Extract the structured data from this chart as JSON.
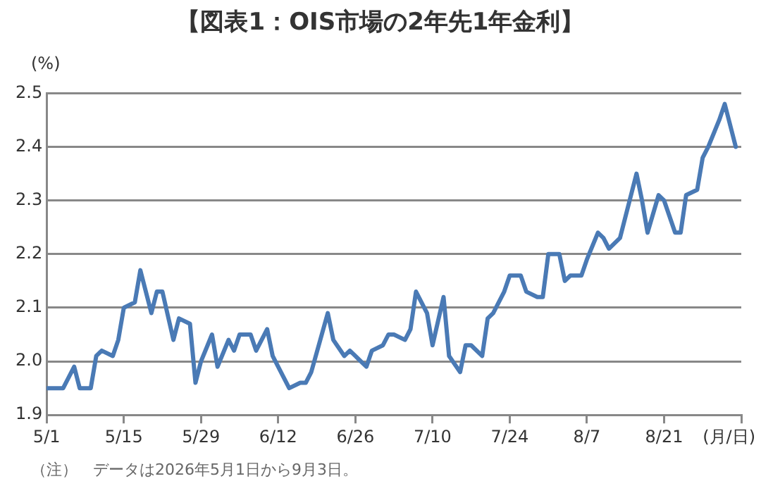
{
  "chart_data": {
    "type": "line",
    "title": "【図表1：OIS市場の2年先1年金利】",
    "ylabel": "(%)",
    "xlabel": "(月/日)",
    "annotations": [
      "（注）　データは2026年5月1日から9月3日。"
    ],
    "x": [
      "2026-05-01",
      "2026-05-04",
      "2026-05-06",
      "2026-05-07",
      "2026-05-09",
      "2026-05-10",
      "2026-05-11",
      "2026-05-13",
      "2026-05-14",
      "2026-05-15",
      "2026-05-17",
      "2026-05-18",
      "2026-05-20",
      "2026-05-21",
      "2026-05-22",
      "2026-05-24",
      "2026-05-25",
      "2026-05-27",
      "2026-05-28",
      "2026-05-29",
      "2026-05-31",
      "2026-06-01",
      "2026-06-03",
      "2026-06-04",
      "2026-06-05",
      "2026-06-07",
      "2026-06-08",
      "2026-06-10",
      "2026-06-11",
      "2026-06-14",
      "2026-06-16",
      "2026-06-17",
      "2026-06-18",
      "2026-06-21",
      "2026-06-22",
      "2026-06-24",
      "2026-06-25",
      "2026-06-26",
      "2026-06-28",
      "2026-06-29",
      "2026-07-01",
      "2026-07-02",
      "2026-07-03",
      "2026-07-05",
      "2026-07-06",
      "2026-07-07",
      "2026-07-09",
      "2026-07-10",
      "2026-07-12",
      "2026-07-13",
      "2026-07-15",
      "2026-07-16",
      "2026-07-17",
      "2026-07-19",
      "2026-07-20",
      "2026-07-21",
      "2026-07-23",
      "2026-07-24",
      "2026-07-26",
      "2026-07-27",
      "2026-07-29",
      "2026-07-30",
      "2026-07-31",
      "2026-08-02",
      "2026-08-03",
      "2026-08-04",
      "2026-08-06",
      "2026-08-07",
      "2026-08-09",
      "2026-08-10",
      "2026-08-11",
      "2026-08-13",
      "2026-08-14",
      "2026-08-16",
      "2026-08-17",
      "2026-08-18",
      "2026-08-20",
      "2026-08-21",
      "2026-08-23",
      "2026-08-24",
      "2026-08-25",
      "2026-08-27",
      "2026-08-28",
      "2026-08-29",
      "2026-08-31",
      "2026-09-01",
      "2026-09-03"
    ],
    "series": [
      {
        "color": "#4a7ab5",
        "values": [
          1.95,
          1.95,
          1.99,
          1.95,
          1.95,
          2.01,
          2.02,
          2.01,
          2.04,
          2.1,
          2.11,
          2.17,
          2.09,
          2.13,
          2.13,
          2.04,
          2.08,
          2.07,
          1.96,
          2.0,
          2.05,
          1.99,
          2.04,
          2.02,
          2.05,
          2.05,
          2.02,
          2.06,
          2.01,
          1.95,
          1.96,
          1.96,
          1.98,
          2.09,
          2.04,
          2.01,
          2.02,
          2.01,
          1.99,
          2.02,
          2.03,
          2.05,
          2.05,
          2.04,
          2.06,
          2.13,
          2.09,
          2.03,
          2.12,
          2.01,
          1.98,
          2.03,
          2.03,
          2.01,
          2.08,
          2.09,
          2.13,
          2.16,
          2.16,
          2.13,
          2.12,
          2.12,
          2.2,
          2.2,
          2.15,
          2.16,
          2.16,
          2.19,
          2.24,
          2.23,
          2.21,
          2.23,
          2.27,
          2.35,
          2.3,
          2.24,
          2.31,
          2.3,
          2.24,
          2.24,
          2.31,
          2.32,
          2.38,
          2.4,
          2.45,
          2.48,
          2.4
        ]
      }
    ],
    "xlim": [
      "2026-05-01",
      "2026-09-04"
    ],
    "xticks": [
      {
        "value": "2026-05-01",
        "label": "5/1"
      },
      {
        "value": "2026-05-15",
        "label": "5/15"
      },
      {
        "value": "2026-05-29",
        "label": "5/29"
      },
      {
        "value": "2026-06-12",
        "label": "6/12"
      },
      {
        "value": "2026-06-26",
        "label": "6/26"
      },
      {
        "value": "2026-07-10",
        "label": "7/10"
      },
      {
        "value": "2026-07-24",
        "label": "7/24"
      },
      {
        "value": "2026-08-07",
        "label": "8/7"
      },
      {
        "value": "2026-08-21",
        "label": "8/21"
      },
      {
        "value": "2026-09-04",
        "label": null
      }
    ],
    "ylim": [
      1.9,
      2.5
    ],
    "yticks": [
      1.9,
      {
        "value": 2.0,
        "label": "2.0"
      },
      2.1,
      2.2,
      2.3,
      2.4,
      2.5
    ],
    "grid": "y",
    "legend": false,
    "marker": "none",
    "line_style": "solid"
  }
}
